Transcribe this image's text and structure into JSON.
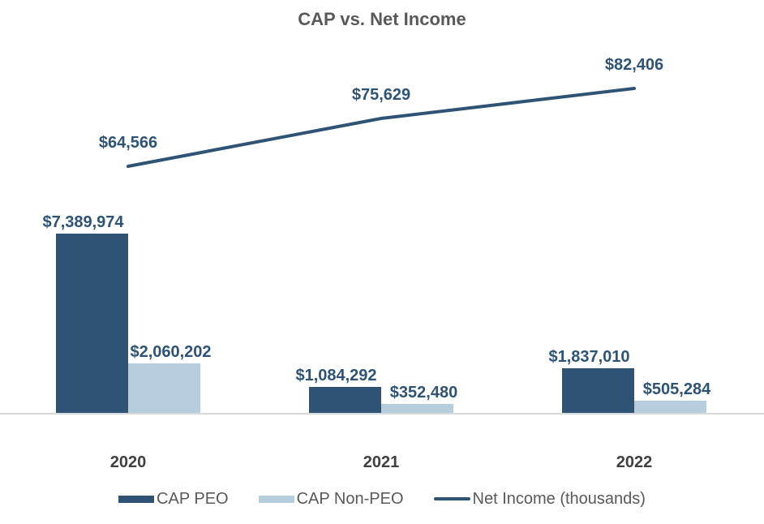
{
  "chart_data": {
    "type": "combo_bar_line",
    "title": "CAP vs. Net Income",
    "categories": [
      "2020",
      "2021",
      "2022"
    ],
    "series": [
      {
        "name": "CAP PEO",
        "type": "bar",
        "color": "#2E5374",
        "values": [
          7389974,
          1084292,
          1837010
        ],
        "labels": [
          "$7,389,974",
          "$1,084,292",
          "$1,837,010"
        ]
      },
      {
        "name": "CAP Non-PEO",
        "type": "bar",
        "color": "#B5CDDC",
        "values": [
          2060202,
          352480,
          505284
        ],
        "labels": [
          "$2,060,202",
          "$352,480",
          "$505,284"
        ]
      },
      {
        "name": "Net Income (thousands)",
        "type": "line",
        "color": "#2E5374",
        "values": [
          64566,
          75629,
          82406
        ],
        "labels": [
          "$64,566",
          "$75,629",
          "$82,406"
        ]
      }
    ],
    "legend_position": "bottom",
    "grid": false,
    "y_axis_visible": false,
    "style": {
      "background": "#FFFFFF",
      "title_color": "#595959",
      "category_label_color": "#404040",
      "legend_text_color": "#595959",
      "data_label_color": "#2E5374",
      "axis_line_color": "#D9D9D9"
    }
  }
}
